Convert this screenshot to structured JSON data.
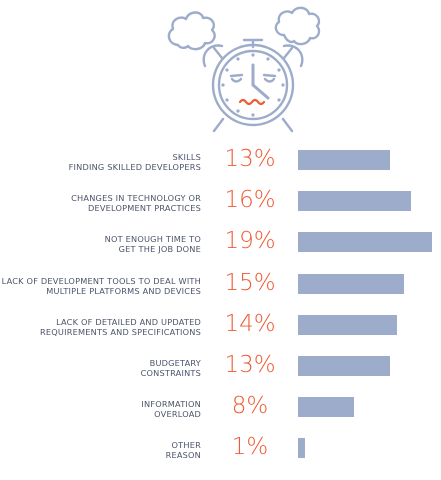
{
  "colors": {
    "bar": "#9eaccb",
    "percent": "#f05a34",
    "label": "#4b5369",
    "clock_line": "#9eaccb",
    "clock_mouth": "#f05a34"
  },
  "illustration": {
    "icon": "alarm-clock-icon"
  },
  "chart_data": {
    "type": "bar",
    "orientation": "horizontal",
    "categories": [
      "SKILLS\nFINDING SKILLED DEVELOPERS",
      "CHANGES IN TECHNOLOGY OR\nDEVELOPMENT PRACTICES",
      "NOT ENOUGH TIME TO\nGET THE JOB DONE",
      "LACK OF DEVELOPMENT TOOLS TO DEAL WITH\nMULTIPLE PLATFORMS AND DEVICES",
      "LACK OF DETAILED AND UPDATED\nREQUIREMENTS AND SPECIFICATIONS",
      "BUDGETARY\nCONSTRAINTS",
      "INFORMATION\nOVERLOAD",
      "OTHER\nREASON"
    ],
    "values": [
      13,
      16,
      19,
      15,
      14,
      13,
      8,
      1
    ],
    "value_labels": [
      "13%",
      "16%",
      "19%",
      "15%",
      "14%",
      "13%",
      "8%",
      "1%"
    ],
    "unit": "%",
    "xlim": [
      0,
      19
    ],
    "grid": false,
    "legend": "none"
  }
}
